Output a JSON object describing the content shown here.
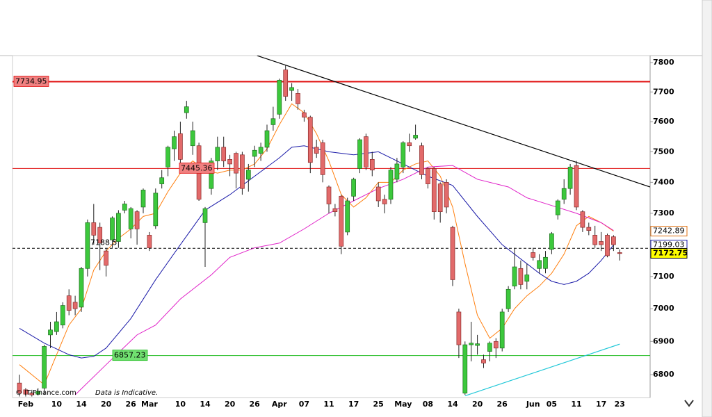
{
  "chart_data": {
    "type": "candlestick",
    "log_scale": true,
    "grid": false,
    "ylim": [
      6732,
      7824
    ],
    "yticks": [
      6800,
      6900,
      7000,
      7100,
      7200,
      7300,
      7400,
      7500,
      7600,
      7700,
      7800
    ],
    "up_color": "#3cc83c",
    "down_color": "#e26a6a",
    "categories": [
      null,
      "Feb",
      null,
      null,
      null,
      null,
      "10",
      null,
      null,
      null,
      "14",
      null,
      null,
      null,
      "20",
      null,
      null,
      null,
      "26",
      null,
      null,
      "Mar",
      null,
      null,
      null,
      null,
      "10",
      null,
      null,
      null,
      "14",
      null,
      null,
      null,
      "20",
      null,
      null,
      null,
      "26",
      null,
      null,
      null,
      "Apr",
      null,
      null,
      null,
      "07",
      null,
      null,
      null,
      "11",
      null,
      null,
      null,
      "17",
      null,
      null,
      null,
      "25",
      null,
      null,
      null,
      "May",
      null,
      null,
      null,
      "08",
      null,
      null,
      null,
      "14",
      null,
      null,
      null,
      "20",
      null,
      null,
      null,
      "26",
      null,
      null,
      null,
      null,
      "Jun",
      null,
      null,
      "05",
      null,
      null,
      null,
      "11",
      null,
      null,
      null,
      "17",
      null,
      null,
      "23"
    ],
    "open": [
      6775,
      6755,
      6745,
      6742,
      6760,
      6920,
      6930,
      6950,
      7040,
      7020,
      7005,
      7125,
      7270,
      7255,
      7180,
      7215,
      7210,
      7310,
      7250,
      7305,
      7320,
      7230,
      7260,
      7395,
      7450,
      7510,
      7560,
      7630,
      7520,
      7520,
      7270,
      7380,
      7470,
      7515,
      7475,
      7495,
      7490,
      7410,
      7485,
      7495,
      7515,
      7590,
      7625,
      7775,
      7705,
      7695,
      7630,
      7615,
      7515,
      7530,
      7385,
      7315,
      7355,
      7240,
      7355,
      7445,
      7550,
      7475,
      7385,
      7345,
      7345,
      7410,
      7450,
      7530,
      7545,
      7520,
      7445,
      7445,
      7395,
      7400,
      7255,
      6990,
      6745,
      6890,
      6888,
      6845,
      6870,
      6900,
      6880,
      7000,
      7070,
      7125,
      7085,
      7175,
      7125,
      7125,
      7185,
      7295,
      7345,
      7380,
      7455,
      7305,
      7255,
      7230,
      7210,
      7230,
      7225,
      7175
    ],
    "high": [
      6800,
      6760,
      6755,
      6760,
      6890,
      6960,
      6990,
      7020,
      7060,
      7040,
      7130,
      7280,
      7330,
      7270,
      7190,
      7290,
      7310,
      7340,
      7320,
      7310,
      7380,
      7240,
      7380,
      7440,
      7520,
      7570,
      7600,
      7670,
      7600,
      7530,
      7320,
      7480,
      7550,
      7550,
      7490,
      7500,
      7500,
      7460,
      7520,
      7530,
      7590,
      7650,
      7745,
      7790,
      7730,
      7710,
      7640,
      7620,
      7540,
      7540,
      7390,
      7330,
      7360,
      7350,
      7415,
      7545,
      7560,
      7500,
      7400,
      7360,
      7450,
      7480,
      7535,
      7560,
      7590,
      7530,
      7450,
      7450,
      7400,
      7410,
      7260,
      7000,
      6900,
      6960,
      6920,
      6860,
      6900,
      6910,
      7000,
      7070,
      7190,
      7150,
      7140,
      7190,
      7170,
      7180,
      7240,
      7345,
      7410,
      7460,
      7470,
      7310,
      7270,
      7260,
      7240,
      7235,
      7230,
      7185
    ],
    "low": [
      6735,
      6735,
      6735,
      6738,
      6740,
      6880,
      6920,
      6940,
      6980,
      6980,
      6990,
      7100,
      7200,
      7120,
      7100,
      7190,
      7190,
      7300,
      7220,
      7200,
      7300,
      7180,
      7250,
      7380,
      7420,
      7470,
      7460,
      7610,
      7490,
      7340,
      7130,
      7360,
      7440,
      7450,
      7420,
      7380,
      7360,
      7370,
      7450,
      7470,
      7500,
      7570,
      7610,
      7670,
      7670,
      7640,
      7600,
      7430,
      7480,
      7400,
      7300,
      7290,
      7170,
      7230,
      7340,
      7430,
      7440,
      7420,
      7320,
      7300,
      7330,
      7400,
      7430,
      7500,
      7540,
      7410,
      7380,
      7280,
      7270,
      7300,
      7070,
      6850,
      6740,
      6840,
      6860,
      6820,
      6840,
      6850,
      6870,
      6990,
      7060,
      7060,
      7060,
      7150,
      7110,
      7110,
      7170,
      7280,
      7330,
      7360,
      7310,
      7240,
      7230,
      7190,
      7180,
      7160,
      7180,
      7150
    ],
    "close": [
      6745,
      6742,
      6740,
      6750,
      6885,
      6935,
      6960,
      7010,
      6995,
      7000,
      7125,
      7270,
      7230,
      7205,
      7135,
      7285,
      7300,
      7330,
      7315,
      7250,
      7375,
      7190,
      7365,
      7415,
      7515,
      7550,
      7475,
      7650,
      7570,
      7345,
      7315,
      7470,
      7515,
      7470,
      7460,
      7430,
      7380,
      7440,
      7505,
      7515,
      7570,
      7610,
      7740,
      7685,
      7715,
      7660,
      7615,
      7465,
      7495,
      7425,
      7330,
      7305,
      7195,
      7340,
      7410,
      7540,
      7450,
      7440,
      7340,
      7330,
      7440,
      7460,
      7530,
      7520,
      7555,
      7425,
      7395,
      7305,
      7305,
      7320,
      7090,
      6890,
      6890,
      6895,
      6893,
      6835,
      6895,
      6880,
      6990,
      7060,
      7130,
      7075,
      7105,
      7160,
      7150,
      7160,
      7235,
      7340,
      7380,
      7450,
      7320,
      7255,
      7245,
      7200,
      7200,
      7165,
      7200,
      7172
    ],
    "overlays": [
      {
        "color": "#ff7f0e",
        "x": [
          0,
          4,
          6,
          8,
          10,
          12,
          14,
          16,
          18,
          20,
          22,
          24,
          26,
          28,
          30,
          32,
          34,
          36,
          38,
          40,
          42,
          44,
          46,
          48,
          50,
          52,
          54,
          56,
          58,
          60,
          62,
          64,
          66,
          68,
          70,
          72,
          74,
          76,
          78,
          80,
          82,
          84,
          86,
          88,
          90,
          92,
          94,
          96
        ],
        "values": [
          6830,
          6770,
          6860,
          6950,
          7000,
          7120,
          7180,
          7220,
          7250,
          7290,
          7300,
          7370,
          7430,
          7470,
          7440,
          7430,
          7440,
          7440,
          7460,
          7510,
          7590,
          7660,
          7630,
          7560,
          7470,
          7360,
          7320,
          7350,
          7400,
          7400,
          7440,
          7460,
          7470,
          7420,
          7320,
          7140,
          6980,
          6910,
          6940,
          7000,
          7040,
          7070,
          7110,
          7170,
          7260,
          7290,
          7270,
          7243
        ]
      },
      {
        "color": "#1a1aa8",
        "x": [
          0,
          4,
          8,
          10,
          12,
          14,
          18,
          22,
          26,
          30,
          34,
          38,
          42,
          44,
          46,
          50,
          54,
          58,
          62,
          66,
          70,
          74,
          78,
          82,
          84,
          86,
          88,
          90,
          92,
          94,
          96
        ],
        "values": [
          6940,
          6895,
          6860,
          6850,
          6855,
          6880,
          6970,
          7090,
          7200,
          7310,
          7360,
          7420,
          7480,
          7515,
          7520,
          7500,
          7490,
          7500,
          7460,
          7420,
          7390,
          7290,
          7200,
          7140,
          7110,
          7085,
          7075,
          7085,
          7110,
          7150,
          7199
        ]
      },
      {
        "color": "#e020c8",
        "x": [
          9,
          14,
          19,
          22,
          26,
          31,
          34,
          38,
          42,
          46,
          50,
          54,
          58,
          62,
          66,
          70,
          74,
          79,
          82,
          86,
          90,
          94,
          96
        ],
        "values": [
          6740,
          6830,
          6920,
          6950,
          7030,
          7105,
          7160,
          7190,
          7205,
          7250,
          7300,
          7340,
          7380,
          7410,
          7450,
          7455,
          7410,
          7385,
          7350,
          7325,
          7300,
          7270,
          7245
        ]
      }
    ],
    "trendlines": [
      {
        "color": "#000000",
        "x": [
          38.4,
          101.9
        ],
        "values": [
          7824,
          7385
        ]
      },
      {
        "color": "#22c8d8",
        "x": [
          72,
          97
        ],
        "values": [
          6737,
          6892
        ]
      }
    ],
    "levels": [
      {
        "value": 7734.95,
        "color": "#e01010",
        "box": "#f08080"
      },
      {
        "value": 7445.36,
        "color": "#e01010",
        "box": "#f08080"
      },
      {
        "value": 6857.23,
        "color": "#22bb22",
        "box": "#70e070"
      },
      {
        "value": 7188.5,
        "color": "#000000",
        "dashed": true
      }
    ],
    "price_tags": [
      {
        "value": 7242.89,
        "color": "#e07010",
        "fill": "#ffffff"
      },
      {
        "value": 7199.03,
        "color": "#1a1aa8",
        "fill": "#ffffff"
      },
      {
        "value": 7172.75,
        "color": "#000000",
        "fill": "#ffff00"
      }
    ],
    "copyright": "© IT-Finance.com",
    "disclaimer": "Data is Indicative."
  }
}
